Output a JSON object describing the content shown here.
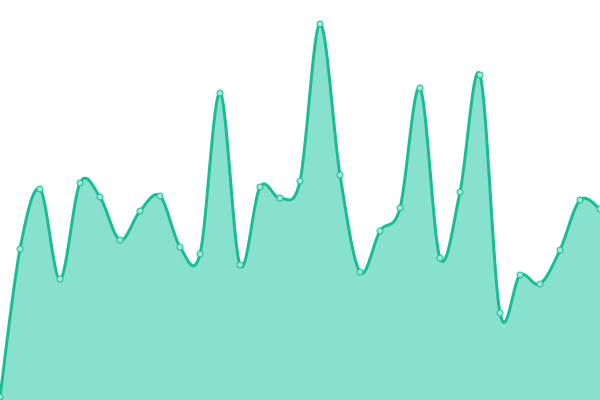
{
  "chart_data": {
    "type": "area",
    "x": [
      0,
      1,
      2,
      3,
      4,
      5,
      6,
      7,
      8,
      9,
      10,
      11,
      12,
      13,
      14,
      15,
      16,
      17,
      18,
      19,
      20,
      21,
      22,
      23,
      24,
      25,
      26,
      27,
      28,
      29,
      30
    ],
    "values": [
      3,
      151,
      211,
      121,
      217,
      203,
      160,
      189,
      204,
      153,
      146,
      307,
      135,
      213,
      202,
      219,
      376,
      225,
      128,
      169,
      192,
      312,
      142,
      208,
      325,
      87,
      125,
      116,
      150,
      200,
      191
    ],
    "ylim": [
      0,
      400
    ],
    "grid": false,
    "smooth": true,
    "colors": {
      "line": "#1dbb95",
      "fill": "#88e0cf",
      "marker_fill": "#9ee8d8"
    }
  }
}
